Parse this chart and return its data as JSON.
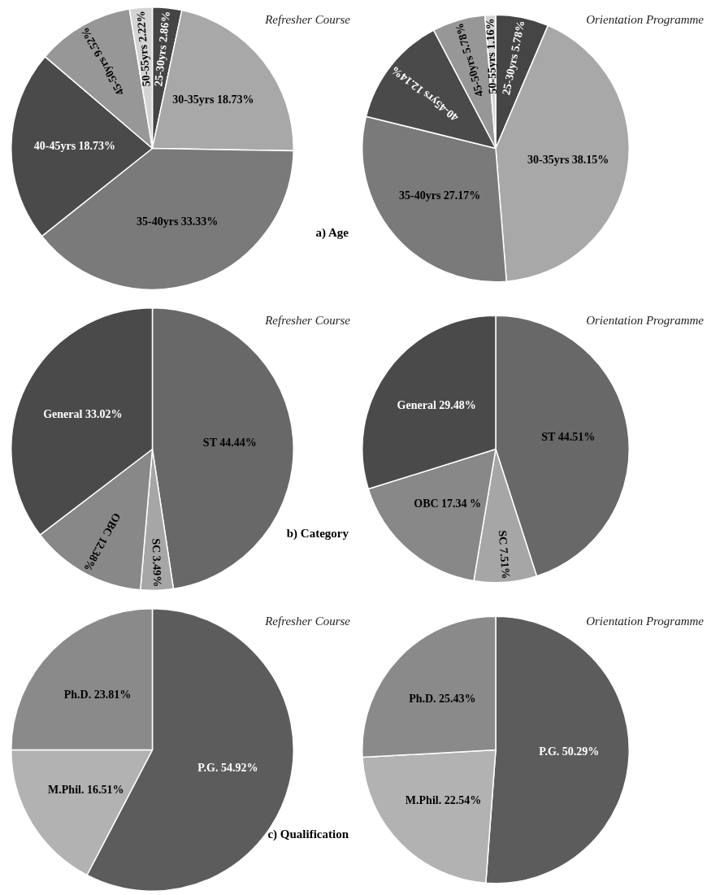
{
  "chart_data": [
    {
      "type": "pie",
      "title": "Refresher Course",
      "annotations": [
        "a) Age"
      ],
      "categories": [
        "25-30yrs",
        "30-35yrs",
        "35-40yrs",
        "40-45yrs",
        "45-50yrs",
        "50-55yrs"
      ],
      "values": [
        2.86,
        18.73,
        33.33,
        18.73,
        9.52,
        2.22
      ],
      "value_labels": [
        "2.86%",
        "18.73%",
        "33.33%",
        "18.73%",
        "9.52%",
        "2.22%"
      ],
      "colors": [
        "#454545",
        "#a8a8a8",
        "#7a7a7a",
        "#4a4a4a",
        "#979797",
        "#d4d4d4"
      ]
    },
    {
      "type": "pie",
      "title": "Orientation Programme",
      "categories": [
        "25-30yrs",
        "30-35yrs",
        "35-40yrs",
        "40-45yrs",
        "45-50yrs",
        "50-55yrs"
      ],
      "values": [
        5.78,
        38.15,
        27.17,
        12.14,
        5.78,
        1.16
      ],
      "value_labels": [
        "5.78%",
        "38.15%",
        "27.17%",
        "12.14%",
        "5.78%",
        "1.16%"
      ],
      "colors": [
        "#454545",
        "#a8a8a8",
        "#7a7a7a",
        "#4a4a4a",
        "#979797",
        "#d4d4d4"
      ]
    },
    {
      "type": "pie",
      "title": "Refresher Course",
      "annotations": [
        "b) Category"
      ],
      "categories": [
        "ST",
        "SC",
        "OBC",
        "General"
      ],
      "values": [
        44.44,
        3.49,
        12.38,
        33.02
      ],
      "value_labels": [
        "44.44%",
        "3.49%",
        "12.38%",
        "33.02%"
      ],
      "colors": [
        "#686868",
        "#a6a6a6",
        "#888888",
        "#4a4a4a"
      ]
    },
    {
      "type": "pie",
      "title": "Orientation Programme",
      "categories": [
        "ST",
        "SC",
        "OBC",
        "General"
      ],
      "values": [
        44.51,
        7.51,
        17.34,
        29.48
      ],
      "value_labels": [
        "44.51%",
        "7.51%",
        "17.34 %",
        "29.48%"
      ],
      "colors": [
        "#686868",
        "#a6a6a6",
        "#888888",
        "#4a4a4a"
      ]
    },
    {
      "type": "pie",
      "title": "Refresher Course",
      "annotations": [
        "c) Qualification"
      ],
      "categories": [
        "P.G.",
        "M.Phil.",
        "Ph.D."
      ],
      "values": [
        54.92,
        16.51,
        23.81
      ],
      "value_labels": [
        "54.92%",
        "16.51%",
        "23.81%"
      ],
      "colors": [
        "#5c5c5c",
        "#b2b2b2",
        "#8a8a8a"
      ]
    },
    {
      "type": "pie",
      "title": "Orientation Programme",
      "categories": [
        "P.G.",
        "M.Phil.",
        "Ph.D."
      ],
      "values": [
        50.29,
        22.54,
        25.43
      ],
      "value_labels": [
        "50.29%",
        "22.54%",
        "25.43%"
      ],
      "colors": [
        "#5c5c5c",
        "#b2b2b2",
        "#8a8a8a"
      ]
    }
  ]
}
